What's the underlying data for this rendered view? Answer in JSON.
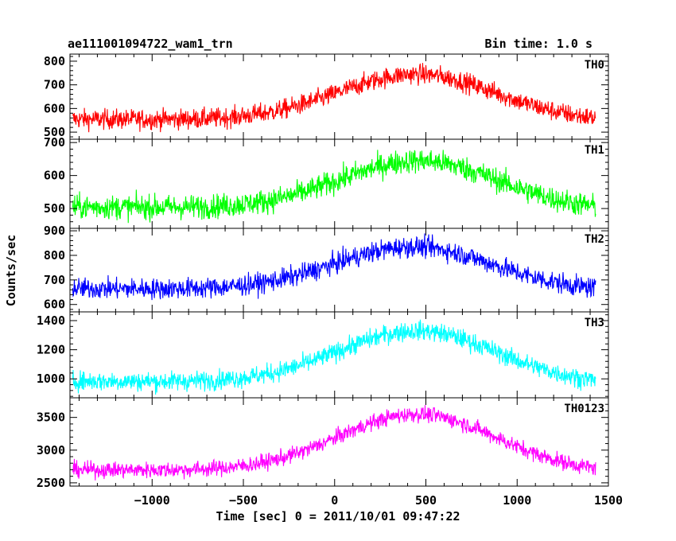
{
  "header": {
    "title": "ae111001094722_wam1_trn",
    "bin_time": "Bin time: 1.0 s"
  },
  "chart_data": {
    "type": "line",
    "xlabel": "Time [sec] 0 = 2011/10/01 09:47:22",
    "ylabel": "Counts/sec",
    "xlim": [
      -1450,
      1500
    ],
    "data_x_range": [
      -1435,
      1430
    ],
    "x_ticks": [
      -1000,
      -500,
      0,
      500,
      1000,
      1500
    ],
    "x_tick_labels": [
      "−1000",
      "−500",
      "0",
      "500",
      "1000",
      "1500"
    ],
    "panels": [
      {
        "name": "TH0",
        "color": "#ff0000",
        "ylim": [
          470,
          830
        ],
        "y_ticks": [
          500,
          600,
          700,
          800
        ],
        "baseline_start": 555,
        "baseline_end": 545,
        "peak_x": 450,
        "peak_value": 745,
        "noise_amplitude": 38
      },
      {
        "name": "TH1",
        "color": "#00ff00",
        "ylim": [
          440,
          710
        ],
        "y_ticks": [
          500,
          600,
          700
        ],
        "baseline_start": 505,
        "baseline_end": 495,
        "peak_x": 460,
        "peak_value": 645,
        "noise_amplitude": 33
      },
      {
        "name": "TH2",
        "color": "#0000ff",
        "ylim": [
          570,
          910
        ],
        "y_ticks": [
          600,
          700,
          800,
          900
        ],
        "baseline_start": 665,
        "baseline_end": 655,
        "peak_x": 430,
        "peak_value": 835,
        "noise_amplitude": 38
      },
      {
        "name": "TH3",
        "color": "#00ffff",
        "ylim": [
          870,
          1460
        ],
        "y_ticks": [
          1000,
          1200,
          1400
        ],
        "baseline_start": 985,
        "baseline_end": 965,
        "peak_x": 450,
        "peak_value": 1330,
        "noise_amplitude": 60
      },
      {
        "name": "TH0123",
        "color": "#ff00ff",
        "ylim": [
          2450,
          3800
        ],
        "y_ticks": [
          2500,
          3000,
          3500
        ],
        "baseline_start": 2700,
        "baseline_end": 2660,
        "peak_x": 450,
        "peak_value": 3550,
        "noise_amplitude": 110
      }
    ]
  }
}
